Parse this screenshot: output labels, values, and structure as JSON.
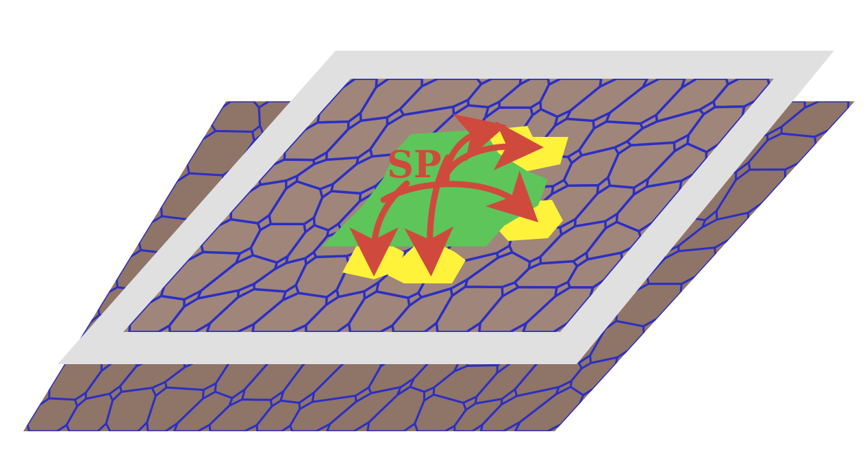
{
  "diagram": {
    "label": "SP",
    "colors": {
      "background": "#ffffff",
      "frame": "#e0e0e0",
      "tile_fill": "#a0857a",
      "tile_fill_dark": "#8f7468",
      "tile_edge": "#2b2fc4",
      "center_superpixel": "#5ec55a",
      "neighbor_superpixels": "#fff23a",
      "arrows_and_label": "#cf4a3c"
    },
    "layers": [
      {
        "name": "upper-layer",
        "highlighted": true
      },
      {
        "name": "lower-layer",
        "highlighted": false
      }
    ],
    "neighbor_count": 5,
    "arrow_count": 5
  }
}
